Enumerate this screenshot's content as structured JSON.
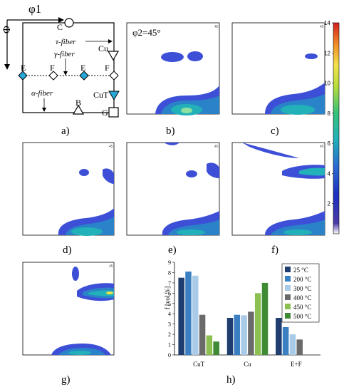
{
  "colors": {
    "contour_outer": "#3d4fd6",
    "contour_mid": "#2a83c8",
    "contour_inner": "#22b1b8",
    "contour_core": "#8de0a0",
    "contour_peak": "#f2e24a",
    "bar_25": "#1f3d6e",
    "bar_200": "#3a7fc1",
    "bar_300": "#a9cbe8",
    "bar_400": "#6a6a6a",
    "bar_450": "#8cc152",
    "bar_500": "#3f8a35",
    "diamond_fill": "#28a8d8"
  },
  "schematic": {
    "panel_label": "a)",
    "phi1_label": "φ1",
    "Phi_label": "Φ",
    "tau_fiber": "τ-fiber",
    "gamma_fiber": "γ-fiber",
    "alpha_fiber": "α-fiber",
    "points": [
      "C",
      "Cu",
      "E",
      "F",
      "E",
      "F",
      "CuT",
      "B",
      "G"
    ]
  },
  "odf_panels": [
    {
      "label": "b)",
      "annotation": "φ2=45°",
      "corner": "45"
    },
    {
      "label": "c)",
      "annotation": "",
      "corner": "45"
    },
    {
      "label": "d)",
      "annotation": "",
      "corner": "45"
    },
    {
      "label": "e)",
      "annotation": "",
      "corner": "45"
    },
    {
      "label": "f)",
      "annotation": "",
      "corner": "45"
    },
    {
      "label": "g)",
      "annotation": "",
      "corner": "45"
    }
  ],
  "colorbar": {
    "ticks": [
      "14",
      "12",
      "10",
      "8",
      "6",
      "4",
      "2"
    ]
  },
  "chart_data": {
    "type": "bar",
    "panel_label": "h)",
    "categories": [
      "CuT",
      "Cu",
      "E+F"
    ],
    "ylabel": "f [vol.%]",
    "xlabel": "",
    "ylim": [
      0,
      9
    ],
    "yticks": [
      "0",
      "1",
      "2",
      "3",
      "4",
      "5",
      "6",
      "7",
      "8",
      "9"
    ],
    "legend_position": "top-right",
    "series": [
      {
        "name": "25 °C",
        "values": [
          7.5,
          3.6,
          3.6
        ]
      },
      {
        "name": "200 °C",
        "values": [
          8.1,
          3.9,
          2.7
        ]
      },
      {
        "name": "300 °C",
        "values": [
          7.7,
          3.85,
          2.0
        ]
      },
      {
        "name": "400 °C",
        "values": [
          3.9,
          4.2,
          1.5
        ]
      },
      {
        "name": "450 °C",
        "values": [
          1.9,
          6.0,
          0
        ]
      },
      {
        "name": "500 °C",
        "values": [
          1.3,
          7.0,
          0
        ]
      }
    ]
  }
}
